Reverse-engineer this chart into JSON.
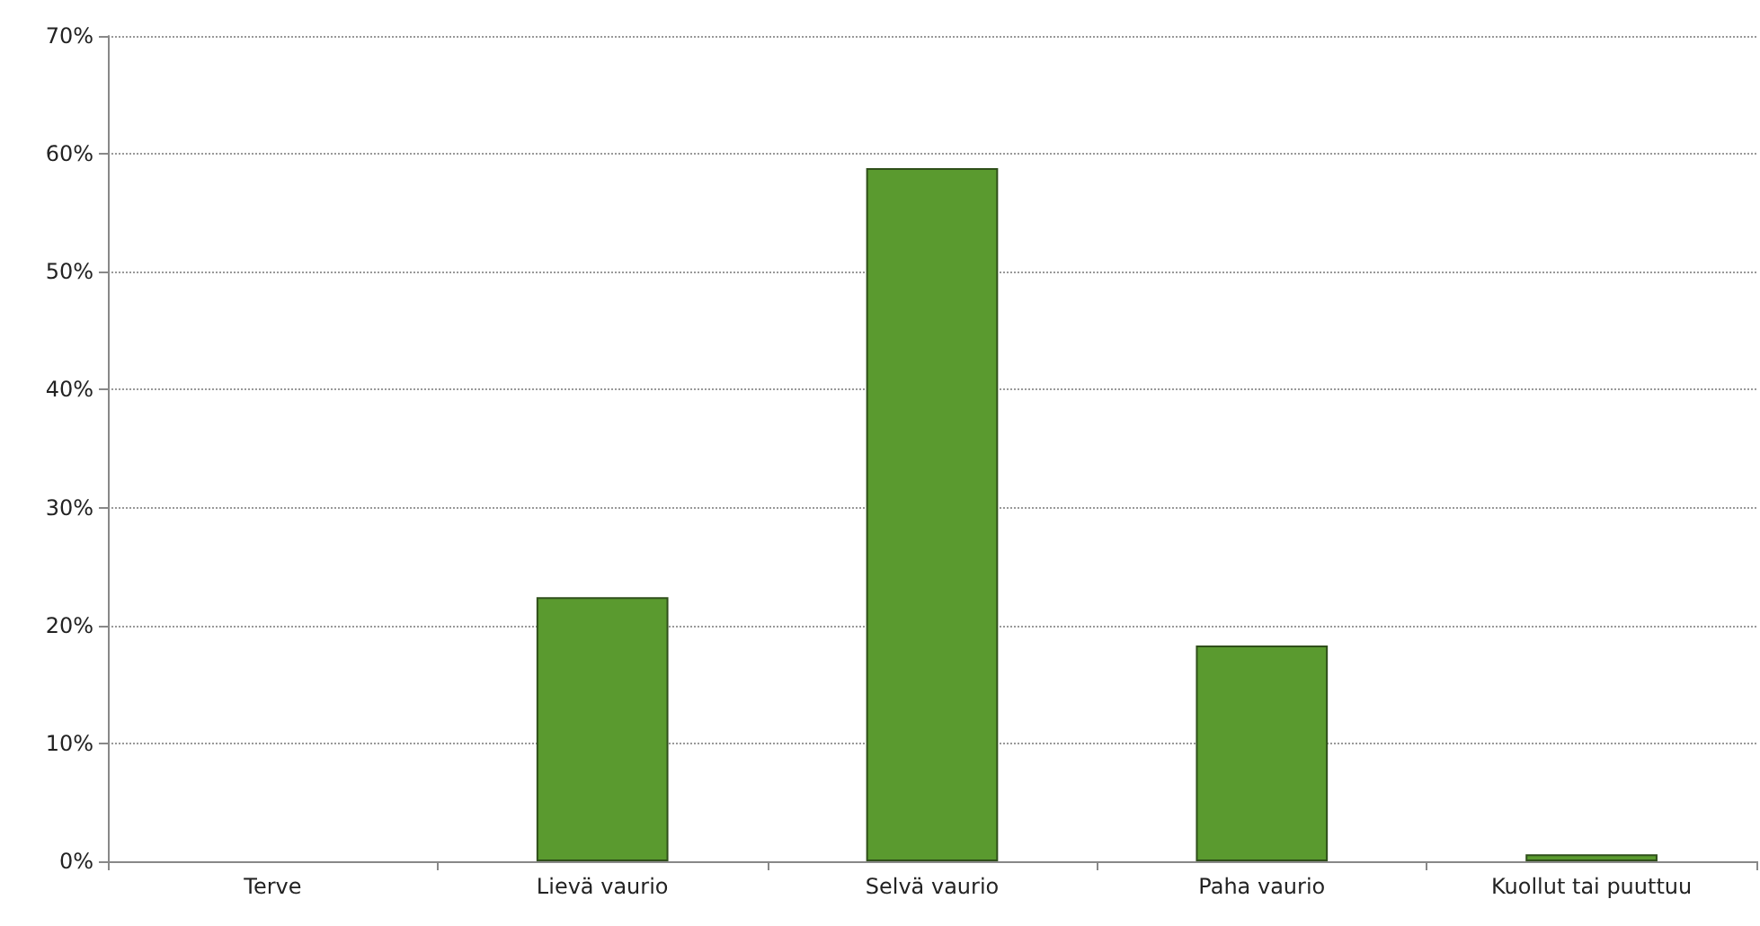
{
  "chart_data": {
    "type": "bar",
    "categories": [
      "Terve",
      "Lievä vaurio",
      "Selvä vaurio",
      "Paha vaurio",
      "Kuollut tai puuttuu"
    ],
    "values": [
      0,
      22.4,
      58.8,
      18.3,
      0.6
    ],
    "color": "#5a9a2f",
    "ylim": [
      0,
      70
    ],
    "yticks": [
      {
        "value": 0,
        "label": "0%"
      },
      {
        "value": 10,
        "label": "10%"
      },
      {
        "value": 20,
        "label": "20%"
      },
      {
        "value": 30,
        "label": "30%"
      },
      {
        "value": 40,
        "label": "40%"
      },
      {
        "value": 50,
        "label": "50%"
      },
      {
        "value": 60,
        "label": "60%"
      },
      {
        "value": 70,
        "label": "70%"
      }
    ],
    "grid": "y"
  }
}
